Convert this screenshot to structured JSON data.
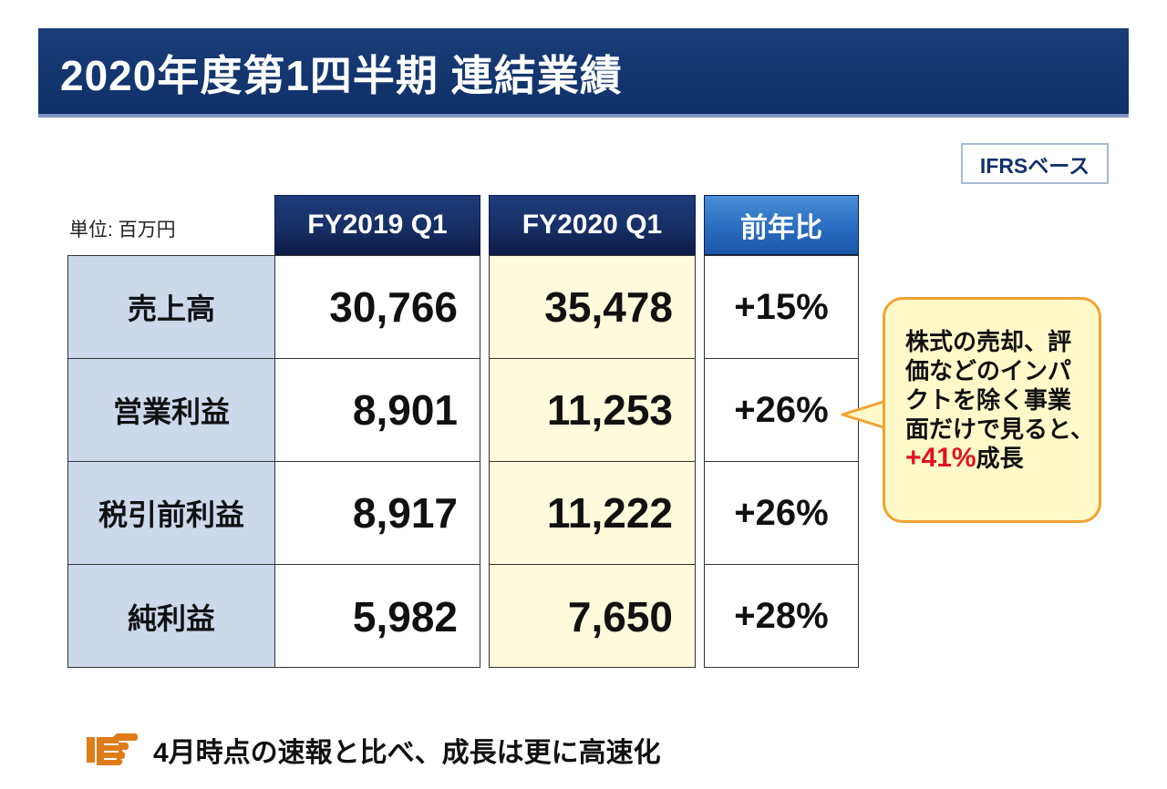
{
  "header": {
    "title": "2020年度第1四半期 連結業績"
  },
  "badge": {
    "label": "IFRSベース"
  },
  "table": {
    "unit_label": "単位: 百万円",
    "columns": [
      "FY2019 Q1",
      "FY2020 Q1",
      "前年比"
    ],
    "rows": [
      {
        "label": "売上高",
        "fy2019": "30,766",
        "fy2020": "35,478",
        "yoy": "+15%"
      },
      {
        "label": "営業利益",
        "fy2019": "8,901",
        "fy2020": "11,253",
        "yoy": "+26%"
      },
      {
        "label": "税引前利益",
        "fy2019": "8,917",
        "fy2020": "11,222",
        "yoy": "+26%"
      },
      {
        "label": "純利益",
        "fy2019": "5,982",
        "fy2020": "7,650",
        "yoy": "+28%"
      }
    ]
  },
  "callout": {
    "lines": [
      "株式の売却、評",
      "価などのインパ",
      "クトを除く事業",
      "面だけで見ると、"
    ],
    "highlight": "+41%",
    "suffix": "成長"
  },
  "footer": {
    "icon": "pointing-hand-icon",
    "text": "4月時点の速報と比べ、成長は更に高速化"
  },
  "colors": {
    "title_bar": "#163a74",
    "header_dark": "#162f66",
    "header_blue": "#2a6cbf",
    "label_col": "#cdd8eb",
    "fy2020_col": "#fdfbdc",
    "callout_bg": "#fff9c9",
    "callout_border": "#f3a234",
    "highlight": "#e0141e",
    "hand_icon": "#e07b1a"
  }
}
